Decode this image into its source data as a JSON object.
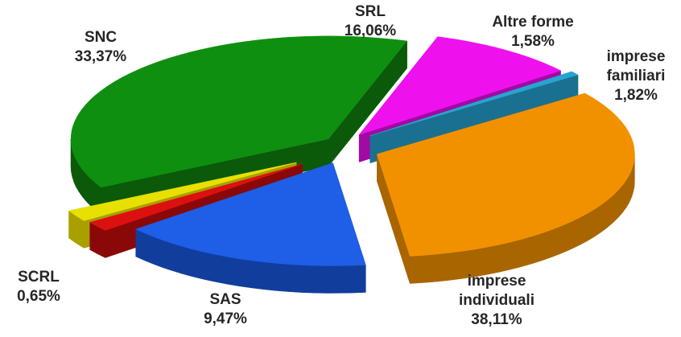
{
  "chart_data": {
    "type": "pie",
    "style": "3d-exploded",
    "legend": "none",
    "slices": [
      {
        "name": "imprese individuali",
        "name_lines": [
          "imprese",
          "individuali"
        ],
        "value": 38.11,
        "label": "38,11%",
        "top_color": "#0f8f0f",
        "side_color": "#0a5a0a"
      },
      {
        "name": "SAS",
        "name_lines": [
          "SAS"
        ],
        "value": 9.47,
        "label": "9,47%",
        "top_color": "#ee11ee",
        "side_color": "#a309a3"
      },
      {
        "name": "SCRL",
        "name_lines": [
          "SCRL"
        ],
        "value": 0.65,
        "label": "0,65%",
        "top_color": "#2aa3cf",
        "side_color": "#1a7090"
      },
      {
        "name": "SNC",
        "name_lines": [
          "SNC"
        ],
        "value": 33.37,
        "label": "33,37%",
        "top_color": "#f29100",
        "side_color": "#a86500"
      },
      {
        "name": "SRL",
        "name_lines": [
          "SRL"
        ],
        "value": 16.06,
        "label": "16,06%",
        "top_color": "#1f5ee6",
        "side_color": "#113d9c"
      },
      {
        "name": "Altre forme",
        "name_lines": [
          "Altre forme"
        ],
        "value": 1.58,
        "label": "1,58%",
        "top_color": "#dd1010",
        "side_color": "#8a0808"
      },
      {
        "name": "imprese familiari",
        "name_lines": [
          "imprese",
          "familiari"
        ],
        "value": 1.82,
        "label": "1,82%",
        "top_color": "#e8e000",
        "side_color": "#a9a000"
      }
    ]
  }
}
